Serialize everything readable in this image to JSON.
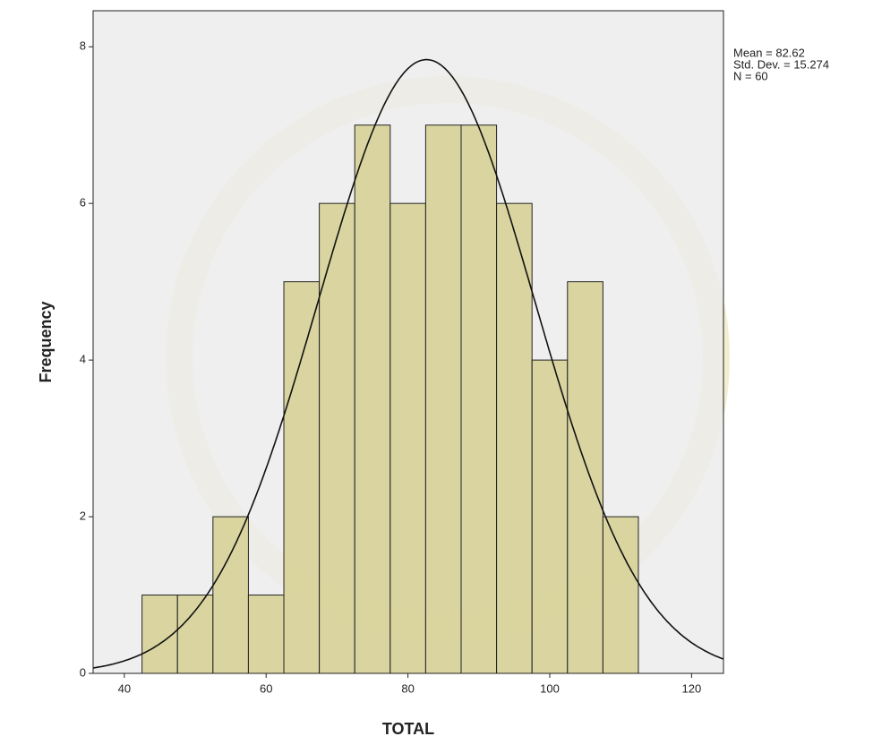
{
  "chart_data": {
    "type": "histogram",
    "x_label": "TOTAL",
    "y_label": "Frequency",
    "bins": [
      42.5,
      47.5,
      52.5,
      57.5,
      62.5,
      67.5,
      72.5,
      77.5,
      82.5,
      87.5,
      92.5,
      97.5,
      102.5,
      107.5,
      112.5
    ],
    "values": [
      1,
      1,
      2,
      1,
      5,
      6,
      7,
      6,
      7,
      7,
      6,
      4,
      5,
      2
    ],
    "color": "#d6d092",
    "xlim": [
      35.6,
      124.5
    ],
    "xticks": [
      40,
      60,
      80,
      100,
      120
    ],
    "ylim": [
      0,
      8.46
    ],
    "yticks": [
      0,
      2,
      4,
      6,
      8
    ],
    "stats": [
      {
        "value": 82.62,
        "label": "Mean = 82.62"
      },
      {
        "value": 15.274,
        "label": "Std. Dev. = 15.274"
      },
      {
        "value": 60,
        "label": "N = 60"
      }
    ],
    "normal_curve": true
  }
}
